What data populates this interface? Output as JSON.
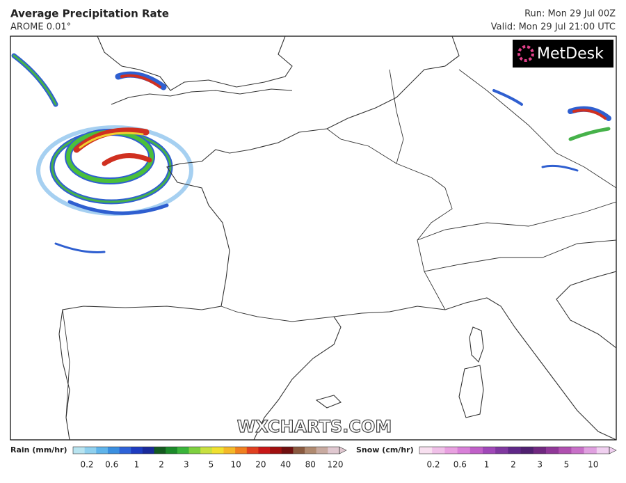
{
  "header": {
    "title": "Average Precipitation Rate",
    "subtitle": "AROME 0.01°",
    "run": "Run: Mon 29 Jul 00Z",
    "valid": "Valid: Mon 29 Jul 21:00 UTC"
  },
  "logo": "MetDesk",
  "watermark": "WXCHARTS.COM",
  "legend": {
    "rain": {
      "label": "Rain (mm/hr)",
      "ticks": [
        "0.2",
        "0.6",
        "1",
        "2",
        "3",
        "5",
        "10",
        "20",
        "40",
        "80",
        "120"
      ]
    },
    "snow": {
      "label": "Snow (cm/hr)",
      "ticks": [
        "0.2",
        "0.6",
        "1",
        "2",
        "3",
        "5",
        "10"
      ]
    }
  }
}
